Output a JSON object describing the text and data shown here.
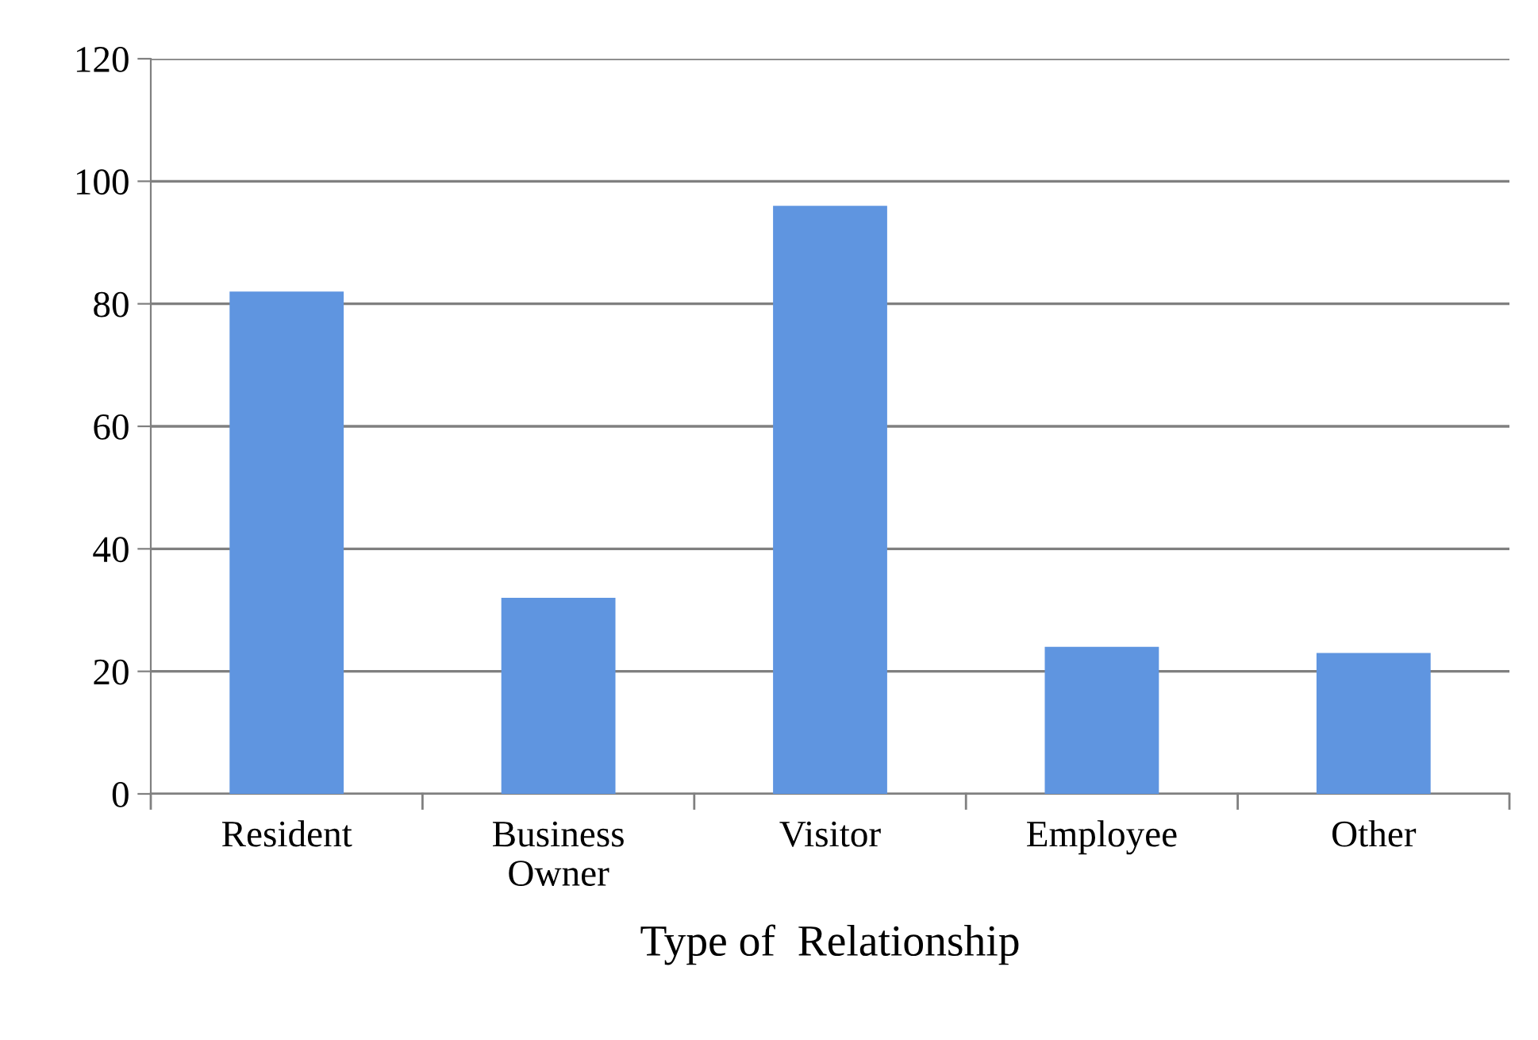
{
  "chart_data": {
    "type": "bar",
    "xlabel": "Type of  Relationship",
    "categories": [
      "Resident",
      "Business\nOwner",
      "Visitor",
      "Employee",
      "Other"
    ],
    "values": [
      82,
      32,
      96,
      24,
      23
    ],
    "color": "#5f95e0",
    "ylim": [
      0,
      120
    ],
    "yticks": [
      0,
      20,
      40,
      60,
      80,
      100,
      120
    ],
    "grid": "y",
    "legend": false
  }
}
